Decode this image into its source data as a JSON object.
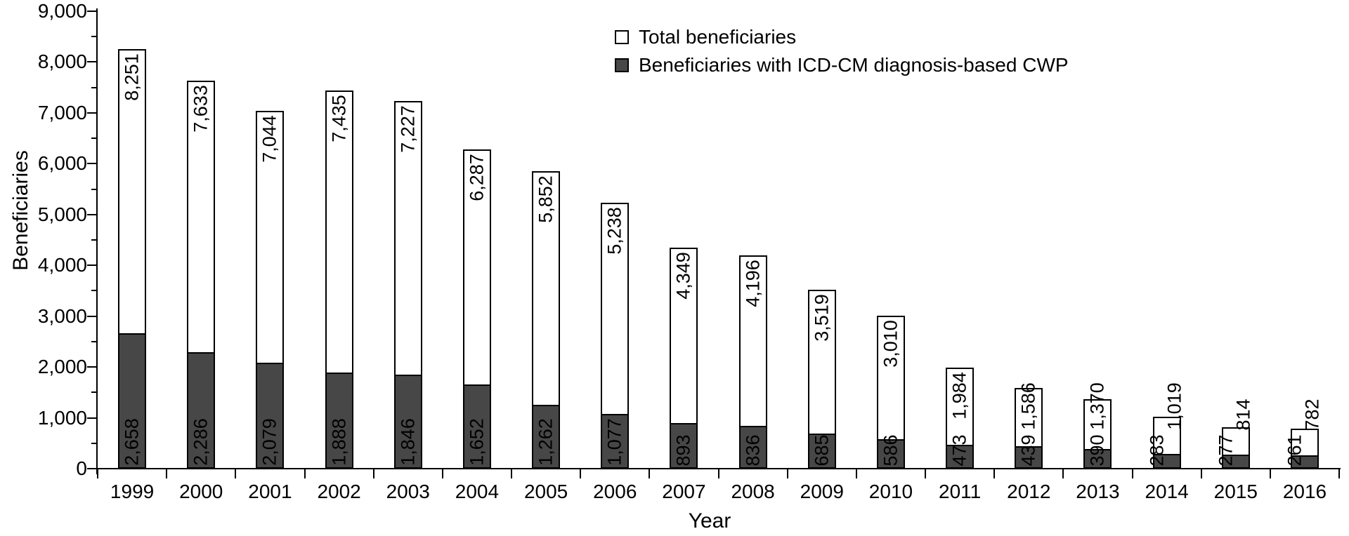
{
  "chart_data": {
    "type": "bar",
    "subtype": "overlaid-stacked-columns",
    "title": "",
    "xlabel": "Year",
    "ylabel": "Beneficiaries",
    "ylim": [
      0,
      9000
    ],
    "ytick_step": 1000,
    "ytick_minor_step": 500,
    "grid": false,
    "legend_position": "top-center",
    "categories": [
      "1999",
      "2000",
      "2001",
      "2002",
      "2003",
      "2004",
      "2005",
      "2006",
      "2007",
      "2008",
      "2009",
      "2010",
      "2011",
      "2012",
      "2013",
      "2014",
      "2015",
      "2016"
    ],
    "series": [
      {
        "name": "Total beneficiaries",
        "color": "#ffffff",
        "border_color": "#000000",
        "values": [
          8251,
          7633,
          7044,
          7435,
          7227,
          6287,
          5852,
          5238,
          4349,
          4196,
          3519,
          3010,
          1984,
          1586,
          1370,
          1019,
          814,
          782
        ]
      },
      {
        "name": "Beneficiaries with ICD-CM diagnosis-based CWP",
        "color": "#474747",
        "border_color": "#000000",
        "values": [
          2658,
          2286,
          2079,
          1888,
          1846,
          1652,
          1262,
          1077,
          893,
          836,
          685,
          586,
          473,
          439,
          390,
          283,
          277,
          261
        ]
      }
    ]
  }
}
